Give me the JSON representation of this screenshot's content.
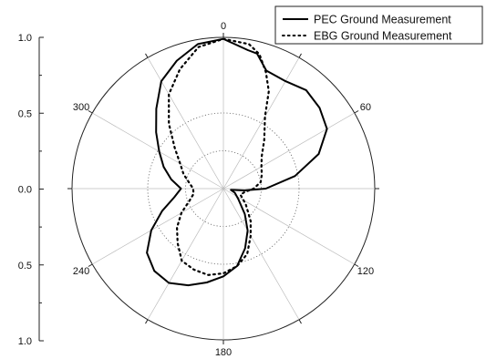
{
  "chart_data": {
    "type": "polar-line",
    "title": "",
    "radial_axis": {
      "range": [
        0,
        1.0
      ],
      "rings": [
        0.5,
        1.0
      ],
      "inner_ring": 0.25,
      "tick_labels": [
        "1.0",
        "0.5",
        "0.0",
        "0.5",
        "1.0"
      ],
      "scale": "normalized linear"
    },
    "angular_axis": {
      "direction": "clockwise",
      "zero_at": "top",
      "spoke_step_deg": 30,
      "tick_labels": [
        {
          "angle": 0,
          "label": "0"
        },
        {
          "angle": 60,
          "label": "60"
        },
        {
          "angle": 120,
          "label": "120"
        },
        {
          "angle": 180,
          "label": "180"
        },
        {
          "angle": 240,
          "label": "240"
        },
        {
          "angle": 300,
          "label": "300"
        }
      ]
    },
    "grid": true,
    "legend_position": "top-right",
    "series": [
      {
        "name": "PEC Ground Measurement",
        "style": "solid",
        "color": "#000000",
        "points": [
          [
            0,
            0.99
          ],
          [
            10,
            0.93
          ],
          [
            14,
            0.92
          ],
          [
            20,
            0.83
          ],
          [
            30,
            0.82
          ],
          [
            40,
            0.85
          ],
          [
            50,
            0.83
          ],
          [
            60,
            0.79
          ],
          [
            70,
            0.67
          ],
          [
            80,
            0.48
          ],
          [
            90,
            0.28
          ],
          [
            95,
            0.14
          ],
          [
            100,
            0.05
          ],
          [
            110,
            0.08
          ],
          [
            125,
            0.12
          ],
          [
            140,
            0.22
          ],
          [
            150,
            0.32
          ],
          [
            160,
            0.42
          ],
          [
            170,
            0.52
          ],
          [
            180,
            0.58
          ],
          [
            190,
            0.63
          ],
          [
            200,
            0.68
          ],
          [
            210,
            0.72
          ],
          [
            220,
            0.71
          ],
          [
            230,
            0.66
          ],
          [
            240,
            0.55
          ],
          [
            250,
            0.43
          ],
          [
            260,
            0.33
          ],
          [
            270,
            0.28
          ],
          [
            280,
            0.35
          ],
          [
            290,
            0.42
          ],
          [
            300,
            0.49
          ],
          [
            310,
            0.58
          ],
          [
            320,
            0.69
          ],
          [
            330,
            0.82
          ],
          [
            340,
            0.9
          ],
          [
            350,
            0.97
          ],
          [
            360,
            0.99
          ]
        ]
      },
      {
        "name": "EBG Ground Measurement",
        "style": "dotted",
        "color": "#000000",
        "points": [
          [
            0,
            0.99
          ],
          [
            10,
            0.97
          ],
          [
            15,
            0.92
          ],
          [
            20,
            0.82
          ],
          [
            25,
            0.71
          ],
          [
            30,
            0.55
          ],
          [
            40,
            0.42
          ],
          [
            50,
            0.33
          ],
          [
            60,
            0.29
          ],
          [
            70,
            0.27
          ],
          [
            80,
            0.25
          ],
          [
            90,
            0.2
          ],
          [
            100,
            0.14
          ],
          [
            110,
            0.12
          ],
          [
            125,
            0.18
          ],
          [
            140,
            0.28
          ],
          [
            150,
            0.36
          ],
          [
            160,
            0.46
          ],
          [
            170,
            0.52
          ],
          [
            180,
            0.56
          ],
          [
            190,
            0.58
          ],
          [
            200,
            0.57
          ],
          [
            210,
            0.55
          ],
          [
            220,
            0.47
          ],
          [
            230,
            0.4
          ],
          [
            240,
            0.32
          ],
          [
            250,
            0.24
          ],
          [
            260,
            0.2
          ],
          [
            270,
            0.2
          ],
          [
            280,
            0.23
          ],
          [
            290,
            0.28
          ],
          [
            300,
            0.33
          ],
          [
            310,
            0.42
          ],
          [
            320,
            0.56
          ],
          [
            330,
            0.72
          ],
          [
            340,
            0.84
          ],
          [
            350,
            0.95
          ],
          [
            360,
            0.99
          ]
        ]
      }
    ]
  }
}
